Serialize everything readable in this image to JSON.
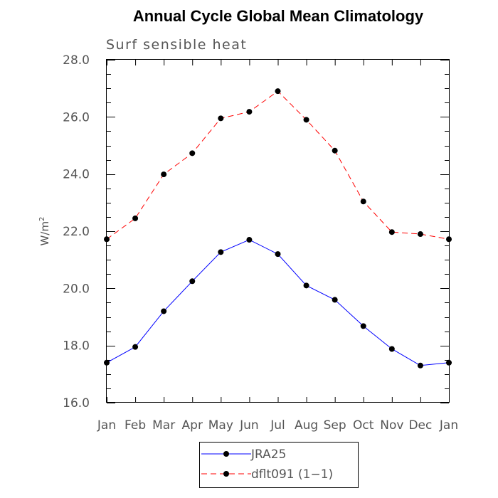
{
  "chart_data": {
    "type": "line",
    "title": "Annual Cycle Global Mean Climatology",
    "subtitle": "Surf sensible heat",
    "xlabel": "",
    "ylabel": "W/m",
    "ylabel_superscript": "2",
    "categories": [
      "Jan",
      "Feb",
      "Mar",
      "Apr",
      "May",
      "Jun",
      "Jul",
      "Aug",
      "Sep",
      "Oct",
      "Nov",
      "Dec",
      "Jan"
    ],
    "ylim": [
      16.0,
      28.0
    ],
    "yticks": [
      "16.0",
      "18.0",
      "20.0",
      "22.0",
      "24.0",
      "26.0",
      "28.0"
    ],
    "grid": false,
    "legend_position": "bottom",
    "series": [
      {
        "name": "JRA25",
        "color": "#0000ff",
        "dashed": false,
        "marker": "filled-circle",
        "values": [
          17.4,
          17.95,
          19.2,
          20.25,
          21.27,
          21.7,
          21.2,
          20.1,
          19.6,
          18.68,
          17.88,
          17.3,
          17.4
        ]
      },
      {
        "name": "dflt091 (1−1)",
        "color": "#ff0000",
        "dashed": true,
        "marker": "filled-circle",
        "values": [
          21.72,
          22.45,
          23.99,
          24.73,
          25.95,
          26.18,
          26.9,
          25.9,
          24.82,
          23.04,
          21.97,
          21.9,
          21.72
        ]
      }
    ]
  }
}
